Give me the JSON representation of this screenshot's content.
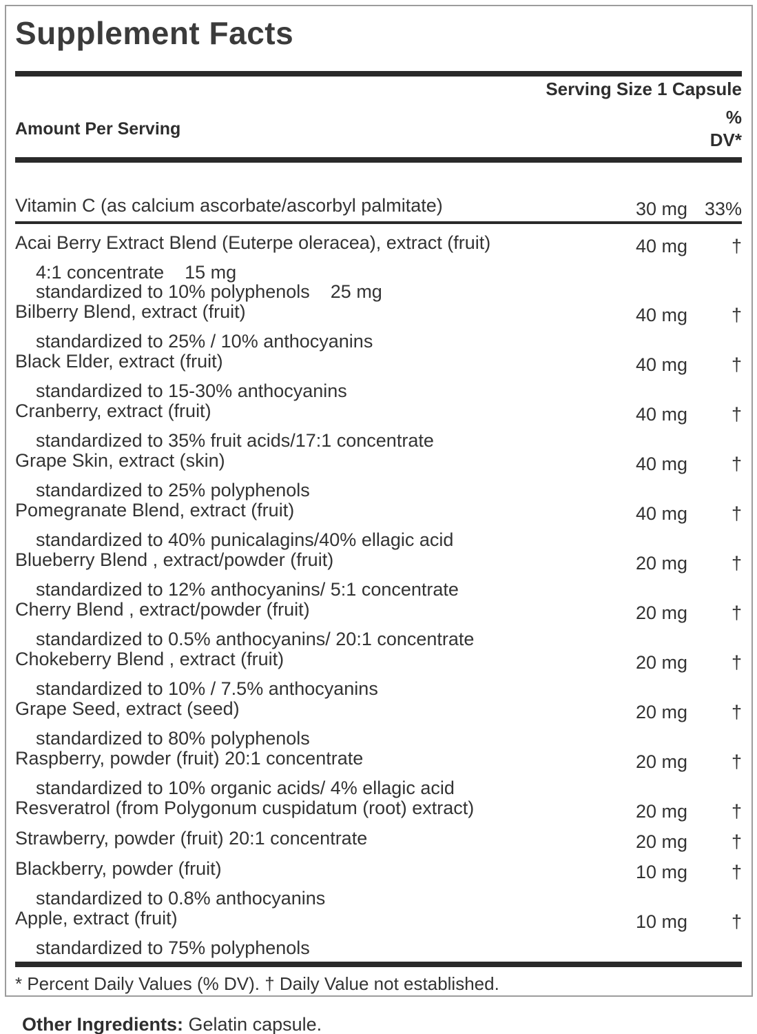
{
  "label": {
    "title": "Supplement Facts",
    "serving_size": "Serving Size 1 Capsule",
    "header": {
      "amount_per_serving": "Amount Per Serving",
      "percent": "%",
      "dv": "DV*"
    },
    "footnote": "* Percent Daily Values (% DV). † Daily Value not established.",
    "other_ingredients_label": "Other Ingredients:",
    "other_ingredients_value": " Gelatin capsule."
  },
  "colors": {
    "text": "#333333",
    "rule": "#2a2a2a",
    "border": "#9c9c9c",
    "background": "#ffffff"
  },
  "rows": [
    {
      "name": "Vitamin C (as calcium ascorbate/ascorbyl palmitate)",
      "amount": "30 mg",
      "dv": "33%",
      "subs": [],
      "divider_after": true
    },
    {
      "name": "Acai Berry Extract Blend (Euterpe oleracea), extract (fruit)",
      "amount": "40 mg",
      "dv": "†",
      "subs": [
        "4:1 concentrate    15 mg",
        "standardized to 10% polyphenols    25 mg"
      ]
    },
    {
      "name": "Bilberry Blend, extract (fruit)",
      "amount": "40 mg",
      "dv": "†",
      "subs": [
        "standardized to 25% / 10% anthocyanins"
      ]
    },
    {
      "name": "Black Elder, extract (fruit)",
      "amount": "40 mg",
      "dv": "†",
      "subs": [
        "standardized to 15-30% anthocyanins"
      ]
    },
    {
      "name": "Cranberry, extract (fruit)",
      "amount": "40 mg",
      "dv": "†",
      "subs": [
        "standardized to 35% fruit acids/17:1 concentrate"
      ]
    },
    {
      "name": "Grape Skin, extract (skin)",
      "amount": "40 mg",
      "dv": "†",
      "subs": [
        "standardized to 25% polyphenols"
      ]
    },
    {
      "name": "Pomegranate Blend, extract (fruit)",
      "amount": "40 mg",
      "dv": "†",
      "subs": [
        "standardized to 40% punicalagins/40% ellagic acid"
      ]
    },
    {
      "name": "Blueberry Blend , extract/powder (fruit)",
      "amount": "20 mg",
      "dv": "†",
      "subs": [
        "standardized to 12% anthocyanins/ 5:1 concentrate"
      ]
    },
    {
      "name": "Cherry Blend , extract/powder (fruit)",
      "amount": "20 mg",
      "dv": "†",
      "subs": [
        "standardized to 0.5% anthocyanins/ 20:1 concentrate"
      ]
    },
    {
      "name": "Chokeberry Blend , extract (fruit)",
      "amount": "20 mg",
      "dv": "†",
      "subs": [
        "standardized to 10% / 7.5% anthocyanins"
      ]
    },
    {
      "name": "Grape Seed, extract (seed)",
      "amount": "20 mg",
      "dv": "†",
      "subs": [
        "standardized to 80% polyphenols"
      ]
    },
    {
      "name": "Raspberry, powder (fruit) 20:1 concentrate",
      "amount": "20 mg",
      "dv": "†",
      "subs": [
        "standardized to 10% organic acids/ 4% ellagic acid"
      ]
    },
    {
      "name": "Resveratrol (from Polygonum cuspidatum (root) extract)",
      "amount": "20 mg",
      "dv": "†",
      "subs": []
    },
    {
      "name": "Strawberry, powder (fruit) 20:1 concentrate",
      "amount": "20 mg",
      "dv": "†",
      "subs": []
    },
    {
      "name": "Blackberry, powder (fruit)",
      "amount": "10 mg",
      "dv": "†",
      "subs": [
        "standardized to 0.8% anthocyanins"
      ]
    },
    {
      "name": "Apple, extract (fruit)",
      "amount": "10 mg",
      "dv": "†",
      "subs": [
        "standardized to 75% polyphenols"
      ]
    }
  ]
}
